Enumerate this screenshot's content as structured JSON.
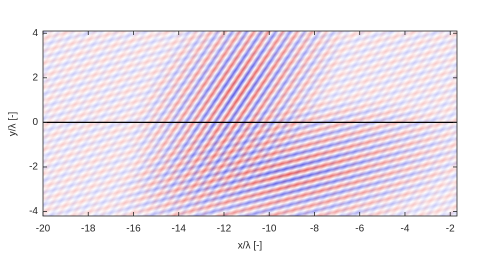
{
  "chart_data": {
    "type": "heatmap",
    "xlabel": "x/λ [-]",
    "ylabel": "y/λ [-]",
    "xlim": [
      -20,
      -1.7
    ],
    "ylim": [
      -4.2,
      4.1
    ],
    "xticks": [
      -20,
      -18,
      -16,
      -14,
      -12,
      -10,
      -8,
      -6,
      -4,
      -2
    ],
    "yticks": [
      -4,
      -2,
      0,
      2,
      4
    ],
    "hline": 0
  }
}
